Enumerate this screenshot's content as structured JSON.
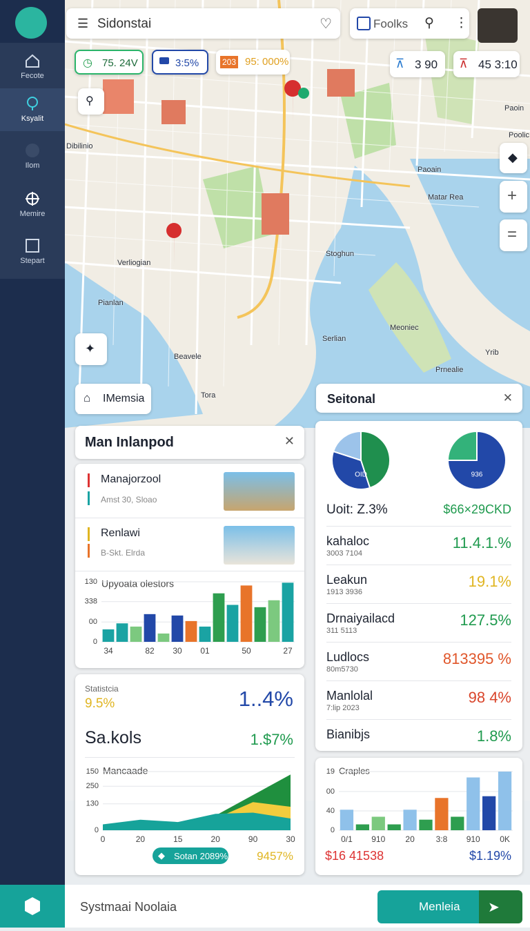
{
  "sidebar": {
    "items": [
      "Fecote",
      "Ksyalit",
      "Ilom",
      "Memire",
      "Stepart"
    ]
  },
  "search": {
    "placeholder": "Sidonstai"
  },
  "tools": {
    "label": "Foolks"
  },
  "chips": [
    {
      "text": "75. 24V"
    },
    {
      "text": "3:5%"
    },
    {
      "badge": "203",
      "text": "95: 000%"
    }
  ],
  "stats": [
    "3 90",
    "45 3:10"
  ],
  "map": {
    "labels": [
      "Paoin",
      "Poolic",
      "Paoain",
      "Matar Rea",
      "Verliogian",
      "Pianlan",
      "Stoghun",
      "Meoniec",
      "Serlian",
      "Yrib",
      "Prnealie",
      "Beavele",
      "Tora",
      "Dibilinio"
    ]
  },
  "tag": "IMemsia",
  "left_panel": {
    "title": "Man Inlanpod",
    "items": [
      {
        "title": "Manajorzool",
        "sub": "Amst 30, Sloao"
      },
      {
        "title": "Renlawi",
        "sub": "B-Skt. Elrda"
      }
    ],
    "chart": {
      "type": "bar",
      "title": "Upyoata olestors",
      "categories": [
        "34",
        null,
        null,
        "82",
        null,
        "30",
        null,
        "01",
        null,
        null,
        "50",
        null,
        null,
        "27"
      ],
      "values": [
        27,
        40,
        33,
        60,
        18,
        57,
        45,
        33,
        105,
        80,
        122,
        75,
        90,
        128
      ],
      "colors": [
        "#1aa3a3",
        "#1aa3a3",
        "#7cc97f",
        "#2248a8",
        "#7cc97f",
        "#2248a8",
        "#e8742a",
        "#1aa3a3",
        "#2e9e4f",
        "#1aa3a3",
        "#e8742a",
        "#2e9e4f",
        "#7cc97f",
        "#1aa3a3"
      ],
      "ylim": [
        0,
        130
      ],
      "yticks": [
        0,
        {
          "value": 43,
          "label": "00"
        },
        {
          "value": 87,
          "label": "338"
        },
        130
      ]
    }
  },
  "right_panel": {
    "title": "Seitonal",
    "pies": [
      {
        "type": "pie",
        "label": "OID",
        "values": [
          45,
          35,
          20
        ],
        "colors": [
          "#1f8f4e",
          "#2248a8",
          "#9cc3ea"
        ]
      },
      {
        "type": "pie",
        "label": "936",
        "values": [
          75,
          25
        ],
        "colors": [
          "#2248a8",
          "#33b27a"
        ]
      }
    ],
    "summary": {
      "left": "Uoit: Z.3%",
      "right": "$66×29CKD"
    },
    "rows": [
      {
        "name": "kahaloc",
        "sub": "3003 7104",
        "value": "11.4.1.%",
        "color": "#1f9a4e"
      },
      {
        "name": "Leakun",
        "sub": "1913 3936",
        "value": "19.1%",
        "color": "#e0b521"
      },
      {
        "name": "Drnaiyailacd",
        "sub": "311 5113",
        "value": "127.5%",
        "color": "#1f9a4e"
      },
      {
        "name": "Ludlocs",
        "sub": "80m5730",
        "value": "813395 %",
        "color": "#e0562a"
      },
      {
        "name": "Manlolal",
        "sub": "7:lip 2023",
        "value": "98 4%",
        "color": "#d9452b"
      },
      {
        "name": "Bianibjs",
        "value": "1.8%",
        "color": "#1f9a4e"
      }
    ]
  },
  "stats_card": {
    "label": "Statistcia",
    "small": "9.5%",
    "big": "1..4%",
    "name": "Sa.kols",
    "name_value": "1.$7%",
    "chart": {
      "type": "area",
      "title": "Mancaade",
      "categories": [
        "0",
        "20",
        "15",
        "20",
        "90",
        "30"
      ],
      "series": [
        {
          "color": "#1f8f3e",
          "values": [
            0,
            2,
            8,
            25,
            60,
            95
          ]
        },
        {
          "color": "#f2cc3d",
          "values": [
            0,
            8,
            12,
            20,
            48,
            40
          ]
        },
        {
          "color": "#16a39a",
          "values": [
            10,
            18,
            14,
            28,
            30,
            20
          ]
        }
      ],
      "ylim": [
        0,
        100
      ],
      "yticks": [
        0,
        {
          "value": 45,
          "label": "130"
        },
        {
          "value": 75,
          "label": "250"
        },
        {
          "value": 100,
          "label": "150"
        }
      ]
    },
    "button": "Sotan 2089%",
    "footer_value": "9457%"
  },
  "craples": {
    "chart": {
      "type": "bar",
      "title": "Craples",
      "categories": [
        "0/1",
        null,
        "910",
        null,
        "20",
        null,
        "3:8",
        null,
        "910",
        null,
        "0K"
      ],
      "values": [
        35,
        10,
        23,
        10,
        35,
        18,
        55,
        23,
        90,
        58,
        100
      ],
      "colors": [
        "#8fc1ea",
        "#2e9e4f",
        "#7cc97f",
        "#2e9e4f",
        "#8fc1ea",
        "#2e9e4f",
        "#e8742a",
        "#2e9e4f",
        "#8fc1ea",
        "#2248a8",
        "#8fc1ea"
      ],
      "ylim": [
        0,
        100
      ],
      "yticks": [
        0,
        {
          "value": 33,
          "label": "40"
        },
        {
          "value": 66,
          "label": "00"
        },
        {
          "value": 100,
          "label": "19"
        }
      ]
    },
    "left": "$16 41538",
    "right": "$1.19%"
  },
  "bottom": {
    "label": "Systmaai Noolaia",
    "button": "Menleia"
  }
}
